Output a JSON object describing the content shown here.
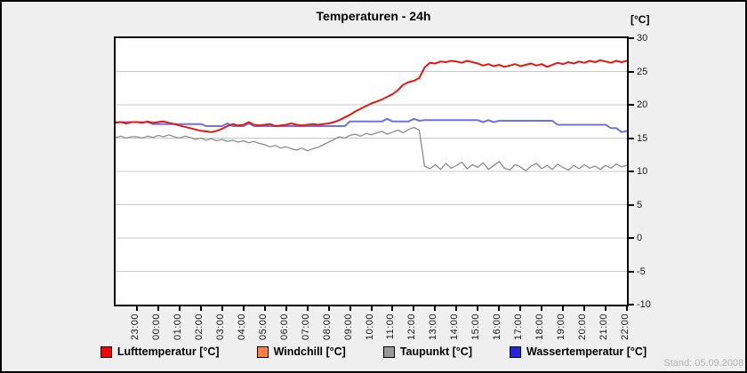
{
  "header": {
    "title": "Temperaturen - 24h"
  },
  "axes": {
    "y_unit": "[°C]",
    "yticks": [
      30,
      25,
      20,
      15,
      10,
      5,
      0,
      -5,
      -10
    ]
  },
  "footer": {
    "stand": "Stand: 05.09.2008 -"
  },
  "colors": {
    "page_bg": "#efefef",
    "plot_bg": "#ffffff",
    "frame": "#000000",
    "grid": "#c8c8c8",
    "luft_line": "#e31a10",
    "windchill_line": "#ff8040",
    "taupunkt_line": "#8c8c8c",
    "wasser_line": "#7070e8"
  },
  "legend": {
    "items": [
      {
        "label": "Lufttemperatur [°C]",
        "color": "#ff0000"
      },
      {
        "label": "Windchill [°C]",
        "color": "#ff8040"
      },
      {
        "label": "Taupunkt [°C]",
        "color": "#999999"
      },
      {
        "label": "Wassertemperatur [°C]",
        "color": "#2424dd"
      }
    ]
  },
  "chart_data": {
    "type": "line",
    "title": "Temperaturen - 24h",
    "ylabel": "[°C]",
    "ylim": [
      -10,
      30
    ],
    "ytick_step": 5,
    "grid": "horizontal-only",
    "legend_position": "bottom",
    "x_span_hours": 24,
    "x_start_offset_hours": -1,
    "points_per_hour": 4,
    "x_tick_labels": [
      "23:00",
      "00:00",
      "01:00",
      "02:00",
      "03:00",
      "04:00",
      "05:00",
      "06:00",
      "07:00",
      "08:00",
      "09:00",
      "10:00",
      "11:00",
      "12:00",
      "13:00",
      "14:00",
      "15:00",
      "16:00",
      "17:00",
      "18:00",
      "19:00",
      "20:00",
      "21:00",
      "22:00"
    ],
    "series": [
      {
        "name": "Lufttemperatur [°C]",
        "color": "#e31a10",
        "width": 2,
        "values": [
          17.3,
          17.4,
          17.2,
          17.4,
          17.4,
          17.3,
          17.5,
          17.3,
          17.4,
          17.5,
          17.3,
          17.1,
          16.9,
          16.7,
          16.5,
          16.3,
          16.1,
          16.0,
          15.9,
          16.1,
          16.4,
          16.8,
          17.1,
          16.9,
          17.0,
          17.4,
          17.0,
          16.9,
          17.0,
          17.1,
          16.8,
          16.9,
          17.0,
          17.2,
          17.0,
          16.9,
          17.0,
          17.1,
          17.0,
          17.1,
          17.2,
          17.4,
          17.7,
          18.1,
          18.5,
          19.0,
          19.4,
          19.8,
          20.2,
          20.5,
          20.8,
          21.2,
          21.6,
          22.2,
          23.0,
          23.4,
          23.6,
          24.0,
          25.6,
          26.3,
          26.2,
          26.5,
          26.4,
          26.6,
          26.5,
          26.3,
          26.6,
          26.4,
          26.2,
          25.9,
          26.1,
          25.8,
          26.0,
          25.7,
          25.9,
          26.1,
          25.8,
          26.0,
          26.2,
          25.9,
          26.1,
          25.7,
          26.0,
          26.3,
          26.1,
          26.4,
          26.2,
          26.5,
          26.3,
          26.6,
          26.4,
          26.7,
          26.5,
          26.3,
          26.6,
          26.4,
          26.6
        ]
      },
      {
        "name": "Windchill [°C]",
        "color": "#ff8040",
        "width": 1.5,
        "values": [
          17.3,
          17.4,
          17.2,
          17.4,
          17.4,
          17.3,
          17.5,
          17.3,
          17.4,
          17.5,
          17.3,
          17.1,
          16.9,
          16.7,
          16.5,
          16.3,
          16.1,
          16.0,
          15.9,
          16.1,
          16.4,
          16.8,
          17.1,
          16.9,
          17.0,
          17.4,
          17.0,
          16.9,
          17.0,
          17.1,
          16.8,
          16.9,
          17.0,
          17.2,
          17.0,
          16.9,
          17.0,
          17.1,
          17.0,
          17.1,
          17.2,
          17.4,
          17.7,
          18.1,
          18.5,
          19.0,
          19.4,
          19.8,
          20.2,
          20.5,
          20.8,
          21.2,
          21.6,
          22.2,
          23.0,
          23.4,
          23.6,
          24.0,
          25.6,
          26.3,
          26.2,
          26.5,
          26.4,
          26.6,
          26.5,
          26.3,
          26.6,
          26.4,
          26.2,
          25.9,
          26.1,
          25.8,
          26.0,
          25.7,
          25.9,
          26.1,
          25.8,
          26.0,
          26.2,
          25.9,
          26.1,
          25.7,
          26.0,
          26.3,
          26.1,
          26.4,
          26.2,
          26.5,
          26.3,
          26.6,
          26.4,
          26.7,
          26.5,
          26.3,
          26.6,
          26.4,
          26.6
        ]
      },
      {
        "name": "Taupunkt [°C]",
        "color": "#8c8c8c",
        "width": 1.3,
        "values": [
          15.1,
          15.3,
          15.0,
          15.2,
          15.2,
          15.0,
          15.3,
          15.1,
          15.4,
          15.2,
          15.5,
          15.2,
          15.0,
          15.3,
          15.1,
          14.8,
          15.0,
          14.7,
          14.9,
          14.6,
          14.8,
          14.5,
          14.7,
          14.4,
          14.6,
          14.3,
          14.5,
          14.2,
          14.0,
          13.7,
          13.9,
          13.5,
          13.7,
          13.4,
          13.2,
          13.5,
          13.1,
          13.4,
          13.6,
          14.0,
          14.4,
          14.8,
          15.2,
          15.0,
          15.4,
          15.6,
          15.3,
          15.7,
          15.5,
          15.8,
          16.0,
          15.6,
          15.9,
          16.2,
          15.8,
          16.3,
          16.6,
          16.2,
          10.8,
          10.4,
          11.0,
          10.3,
          11.2,
          10.5,
          10.9,
          11.4,
          10.4,
          11.0,
          10.6,
          11.3,
          10.3,
          10.9,
          11.5,
          10.5,
          10.2,
          11.0,
          10.7,
          10.1,
          10.8,
          11.2,
          10.4,
          10.9,
          10.3,
          11.1,
          10.6,
          10.2,
          10.9,
          10.4,
          11.0,
          10.5,
          10.8,
          10.3,
          10.9,
          10.5,
          11.1,
          10.7,
          10.9
        ]
      },
      {
        "name": "Wassertemperatur [°C]",
        "color": "#7070e8",
        "width": 2,
        "values": [
          17.4,
          17.4,
          17.4,
          17.4,
          17.4,
          17.4,
          17.4,
          17.1,
          17.1,
          17.1,
          17.1,
          17.1,
          17.1,
          17.1,
          17.1,
          17.1,
          17.1,
          16.8,
          16.8,
          16.8,
          16.8,
          17.2,
          16.8,
          16.8,
          16.8,
          17.2,
          16.8,
          16.8,
          16.8,
          16.8,
          16.8,
          16.8,
          16.8,
          16.8,
          16.8,
          16.8,
          16.8,
          16.8,
          16.8,
          16.8,
          16.8,
          16.8,
          16.8,
          16.8,
          17.5,
          17.5,
          17.5,
          17.5,
          17.5,
          17.5,
          17.5,
          17.9,
          17.5,
          17.5,
          17.5,
          17.5,
          17.9,
          17.6,
          17.7,
          17.7,
          17.7,
          17.7,
          17.7,
          17.7,
          17.7,
          17.7,
          17.7,
          17.7,
          17.7,
          17.4,
          17.7,
          17.4,
          17.6,
          17.6,
          17.6,
          17.6,
          17.6,
          17.6,
          17.6,
          17.6,
          17.6,
          17.6,
          17.6,
          17.0,
          17.0,
          17.0,
          17.0,
          17.0,
          17.0,
          17.0,
          17.0,
          17.0,
          17.0,
          16.5,
          16.5,
          15.9,
          16.1
        ]
      }
    ]
  }
}
